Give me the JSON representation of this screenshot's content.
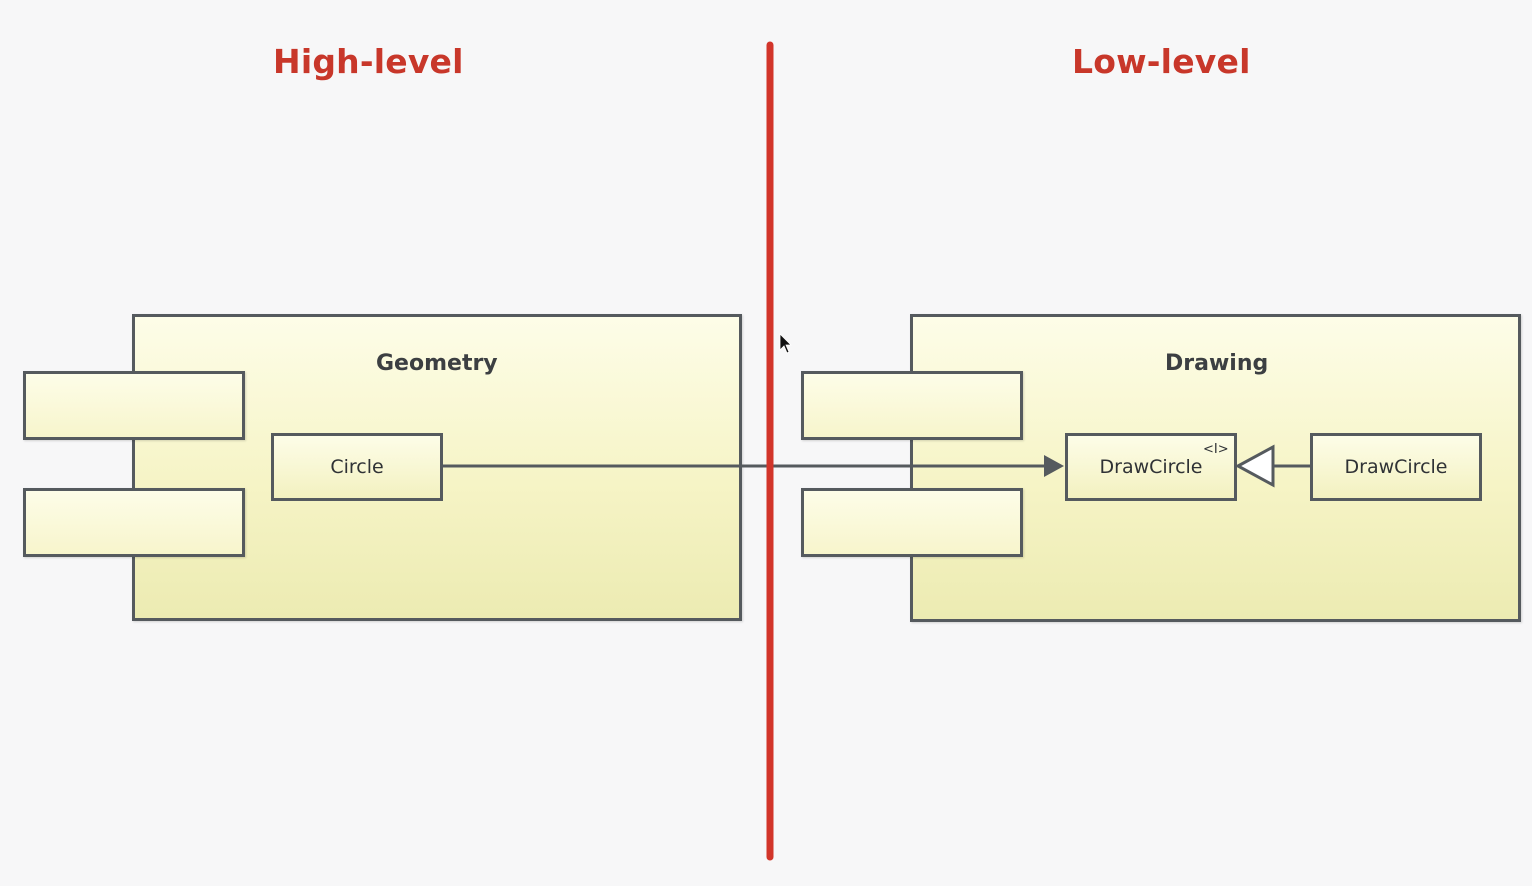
{
  "headings": {
    "high_level": "High-level",
    "low_level": "Low-level"
  },
  "geometry_component": {
    "title": "Geometry",
    "class_name": "Circle"
  },
  "drawing_component": {
    "title": "Drawing",
    "interface_name": "DrawCircle",
    "interface_stereotype": "<I>",
    "implementation_name": "DrawCircle"
  },
  "colors": {
    "heading": "#c8372a",
    "divider": "#d2352a",
    "box_border": "#555a5e",
    "box_fill": "#f6f4c6",
    "connector": "#555a5e"
  }
}
